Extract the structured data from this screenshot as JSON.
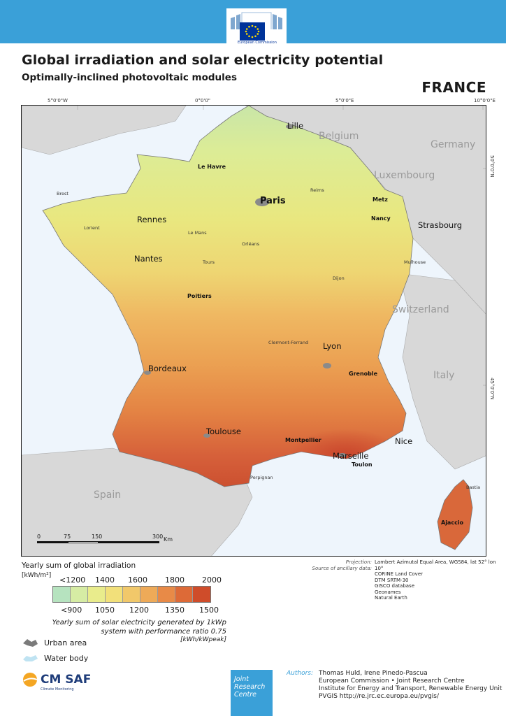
{
  "header": {
    "logo_text": "European Commission"
  },
  "title": "Global irradiation and solar electricity potential",
  "subtitle": "Optimally-inclined photovoltaic modules",
  "country": "FRANCE",
  "graticule": {
    "lon": [
      "5°0'0\"W",
      "0°0'0\"",
      "5°0'0\"E",
      "10°0'0\"E"
    ],
    "lat": [
      "50°0'0\"N",
      "45°0'0\"N"
    ]
  },
  "countries": {
    "belgium": "Belgium",
    "germany": "Germany",
    "luxembourg": "Luxembourg",
    "switzerland": "Switzerland",
    "italy": "Italy",
    "spain": "Spain"
  },
  "cities": {
    "lille": "Lille",
    "le_havre": "Le Havre",
    "brest": "Brest",
    "reims": "Reims",
    "paris": "Paris",
    "metz": "Metz",
    "strasbourg": "Strasbourg",
    "rennes": "Rennes",
    "nancy": "Nancy",
    "lorient": "Lorient",
    "le_mans": "Le Mans",
    "orleans": "Orléans",
    "nantes": "Nantes",
    "tours": "Tours",
    "mulhouse": "Mulhouse",
    "dijon": "Dijon",
    "poitiers": "Poitiers",
    "clermont": "Clermont-Ferrand",
    "lyon": "Lyon",
    "bordeaux": "Bordeaux",
    "grenoble": "Grenoble",
    "toulouse": "Toulouse",
    "montpellier": "Montpellier",
    "nice": "Nice",
    "marseille": "Marseille",
    "toulon": "Toulon",
    "perpignan": "Perpignan",
    "bastia": "Bastia",
    "ajaccio": "Ajaccio"
  },
  "scale": {
    "ticks": [
      "0",
      "75",
      "150",
      "300"
    ],
    "unit": "Km"
  },
  "legend": {
    "title": "Yearly sum of global irradiation",
    "unit": "[kWh/m²]",
    "top_labels": [
      "<1200",
      "1400",
      "1600",
      "1800",
      "2000"
    ],
    "bottom_labels": [
      "<900",
      "1050",
      "1200",
      "1350",
      "1500"
    ],
    "colors": [
      "#b6e3bf",
      "#d6eca4",
      "#e9ec8c",
      "#f2e07a",
      "#f1c86a",
      "#eeaa58",
      "#e88a47",
      "#dd6a37",
      "#cf4c2a"
    ],
    "note": "Yearly sum of solar electricity generated by 1kWp system with performance ratio 0.75",
    "note_unit": "[kWh/kWpeak]",
    "urban": "Urban area",
    "water": "Water body"
  },
  "sources": {
    "projection_label": "Projection:",
    "projection": "Lambert Azimutal Equal Area, WGS84, lat 52° lon 10°",
    "ancillary_label": "Source of ancillary data:",
    "ancillary": [
      "CORINE Land Cover",
      "DTM SRTM-30",
      "GISCO database",
      "Geonames",
      "Natural Earth"
    ]
  },
  "footer": {
    "cmsaf": "CM SAF",
    "cmsaf_sub": "Climate Monitoring",
    "jrc": [
      "Joint",
      "Research",
      "Centre"
    ],
    "authors_label": "Authors:",
    "authors": [
      "Thomas Huld, Irene Pinedo-Pascua",
      "European Commission • Joint Research Centre",
      "Institute for Energy and Transport, Renewable Energy Unit",
      "PVGIS http://re.jrc.ec.europa.eu/pvgis/"
    ]
  }
}
